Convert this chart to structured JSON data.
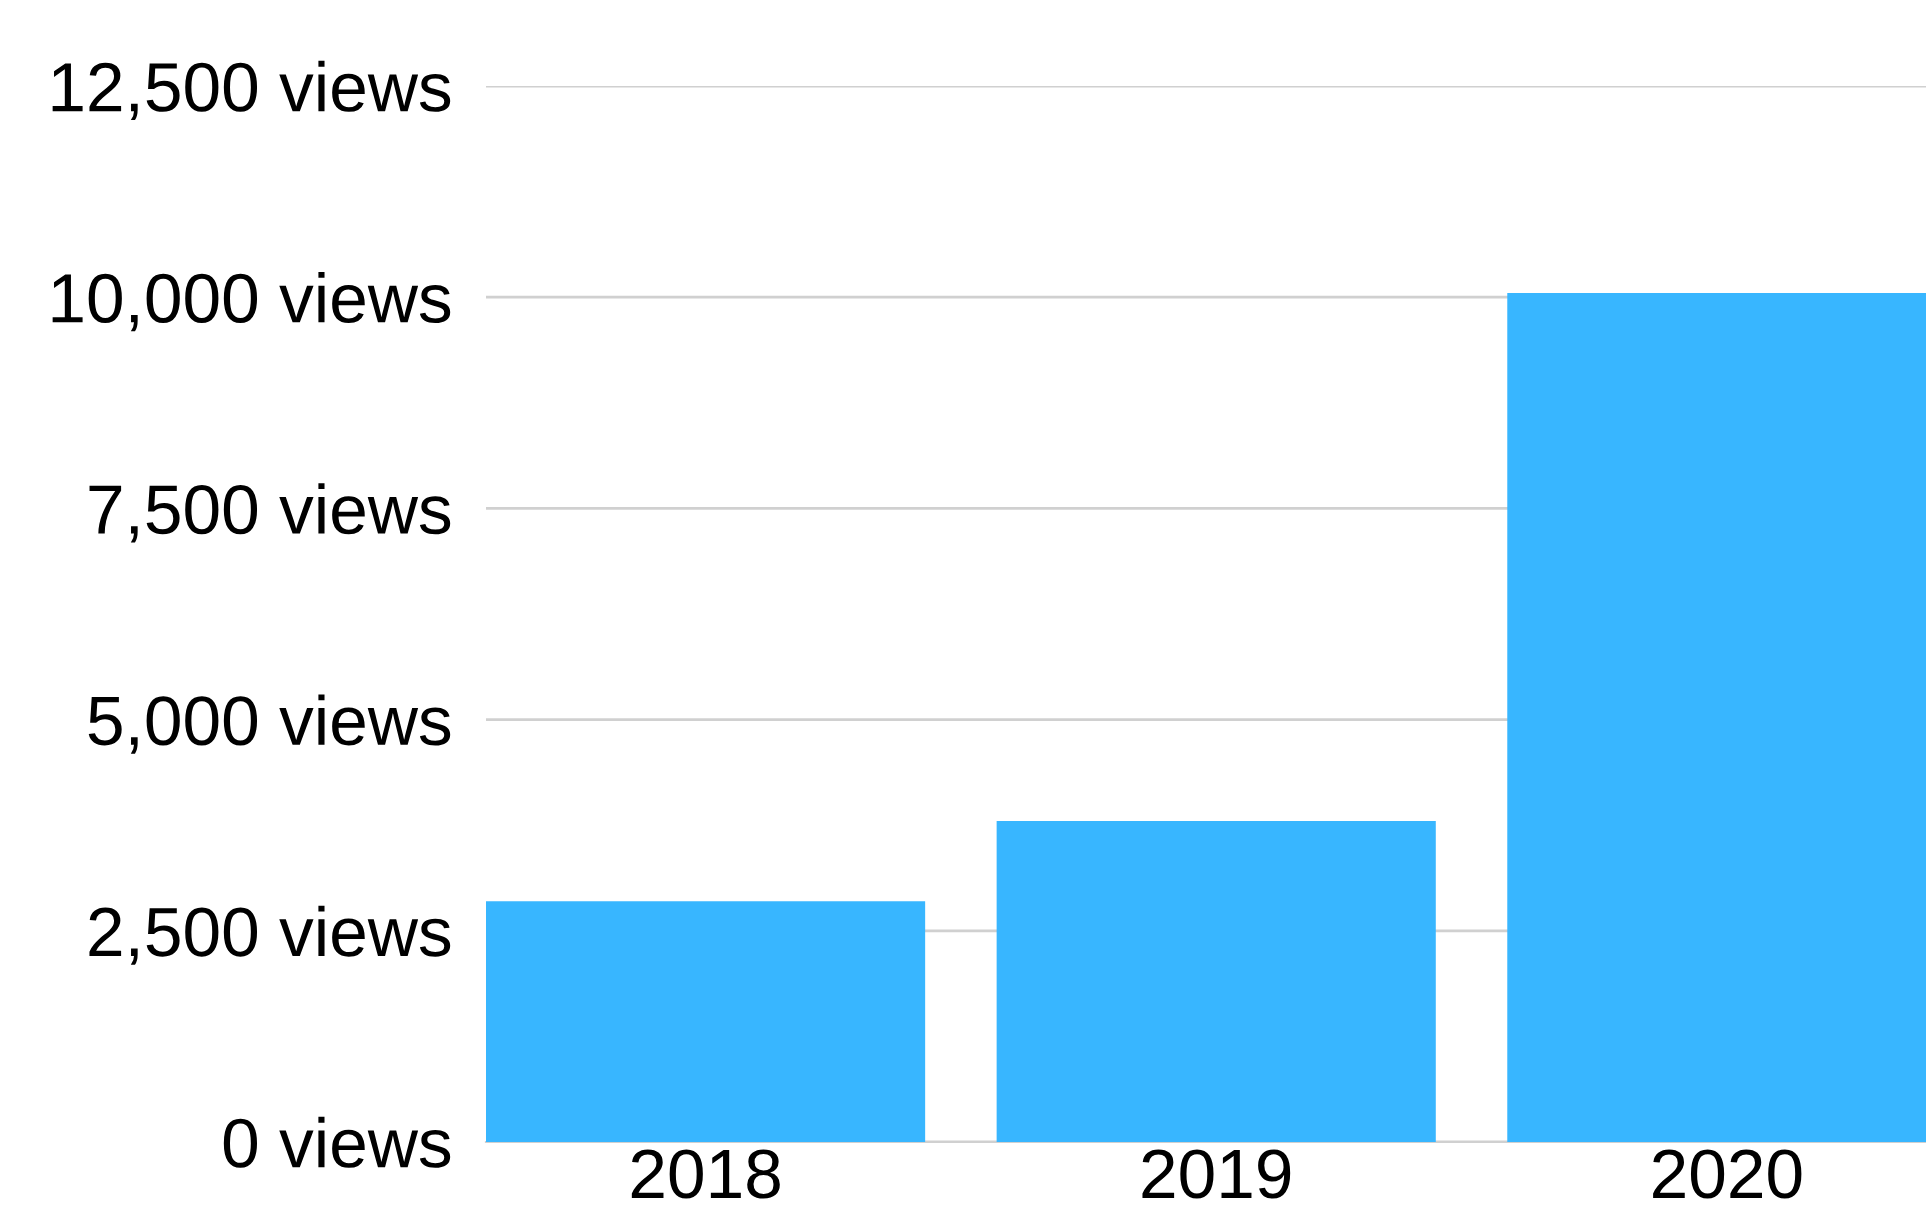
{
  "chart_data": {
    "type": "bar",
    "categories": [
      "2018",
      "2019",
      "2020"
    ],
    "values": [
      2850,
      3800,
      10050
    ],
    "color": "#38b6ff",
    "ylim": [
      0,
      12500
    ],
    "yticks": [
      {
        "value": 0,
        "label": "0 views"
      },
      {
        "value": 2500,
        "label": "2,500 views"
      },
      {
        "value": 5000,
        "label": "5,000 views"
      },
      {
        "value": 7500,
        "label": "7,500 views"
      },
      {
        "value": 10000,
        "label": "10,000 views"
      },
      {
        "value": 12500,
        "label": "12,500 views"
      }
    ],
    "grid": "y",
    "legend": false
  }
}
